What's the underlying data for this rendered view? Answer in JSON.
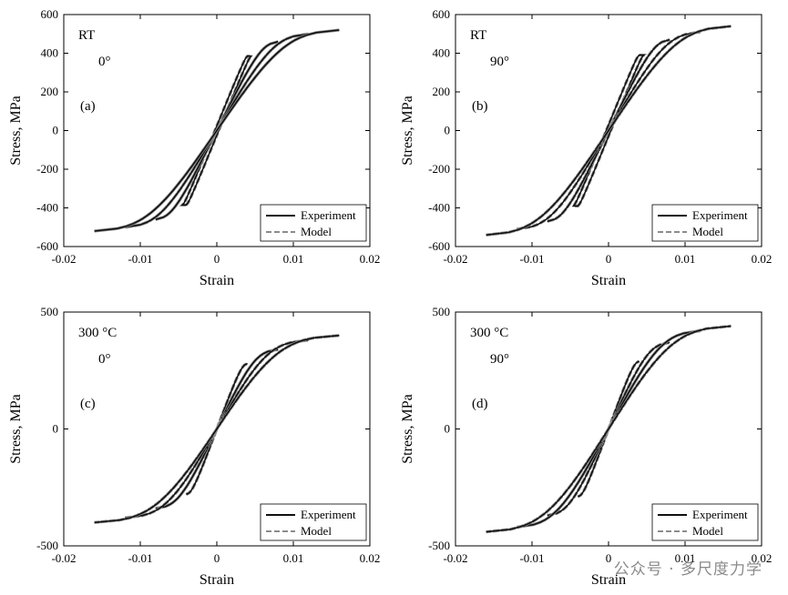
{
  "watermark": "公众号 · 多尺度力学",
  "legend": {
    "experiment": "Experiment",
    "model": "Model"
  },
  "colors": {
    "experiment": "#111111",
    "model": "#8c8c8c",
    "axis": "#000000"
  },
  "chart_data": [
    {
      "type": "line",
      "panel_label": "(a)",
      "condition": "RT",
      "angle": "0°",
      "xlabel": "Strain",
      "ylabel": "Stress, MPa",
      "xlim": [
        -0.02,
        0.02
      ],
      "ylim": [
        -600,
        600
      ],
      "xticks": [
        "-0.02",
        "-0.01",
        "0",
        "0.01",
        "0.02"
      ],
      "yticks": [
        "-600",
        "-400",
        "-200",
        "0",
        "200",
        "400",
        "600"
      ],
      "legend_position": "bottom-right",
      "strain_amplitudes": [
        0.004,
        0.008,
        0.012,
        0.016
      ],
      "peak_stress": [
        385,
        460,
        500,
        520
      ],
      "series": [
        "experiment",
        "model"
      ]
    },
    {
      "type": "line",
      "panel_label": "(b)",
      "condition": "RT",
      "angle": "90°",
      "xlabel": "Strain",
      "ylabel": "Stress, MPa",
      "xlim": [
        -0.02,
        0.02
      ],
      "ylim": [
        -600,
        600
      ],
      "xticks": [
        "-0.02",
        "-0.01",
        "0",
        "0.01",
        "0.02"
      ],
      "yticks": [
        "-600",
        "-400",
        "-200",
        "0",
        "200",
        "400",
        "600"
      ],
      "legend_position": "bottom-right",
      "strain_amplitudes": [
        0.004,
        0.008,
        0.012,
        0.016
      ],
      "peak_stress": [
        390,
        470,
        510,
        540
      ],
      "series": [
        "experiment",
        "model"
      ]
    },
    {
      "type": "line",
      "panel_label": "(c)",
      "condition": "300 °C",
      "angle": "0°",
      "xlabel": "Strain",
      "ylabel": "Stress, MPa",
      "xlim": [
        -0.02,
        0.02
      ],
      "ylim": [
        -500,
        500
      ],
      "xticks": [
        "-0.02",
        "-0.01",
        "0",
        "0.01",
        "0.02"
      ],
      "yticks": [
        "-500",
        "0",
        "500"
      ],
      "legend_position": "bottom-right",
      "strain_amplitudes": [
        0.004,
        0.008,
        0.012,
        0.016
      ],
      "peak_stress": [
        280,
        340,
        380,
        400
      ],
      "series": [
        "experiment",
        "model"
      ]
    },
    {
      "type": "line",
      "panel_label": "(d)",
      "condition": "300 °C",
      "angle": "90°",
      "xlabel": "Strain",
      "ylabel": "Stress, MPa",
      "xlim": [
        -0.02,
        0.02
      ],
      "ylim": [
        -500,
        500
      ],
      "xticks": [
        "-0.02",
        "-0.01",
        "0",
        "0.01",
        "0.02"
      ],
      "yticks": [
        "-500",
        "0",
        "500"
      ],
      "legend_position": "bottom-right",
      "strain_amplitudes": [
        0.004,
        0.008,
        0.012,
        0.016
      ],
      "peak_stress": [
        290,
        370,
        420,
        440
      ],
      "series": [
        "experiment",
        "model"
      ]
    }
  ]
}
